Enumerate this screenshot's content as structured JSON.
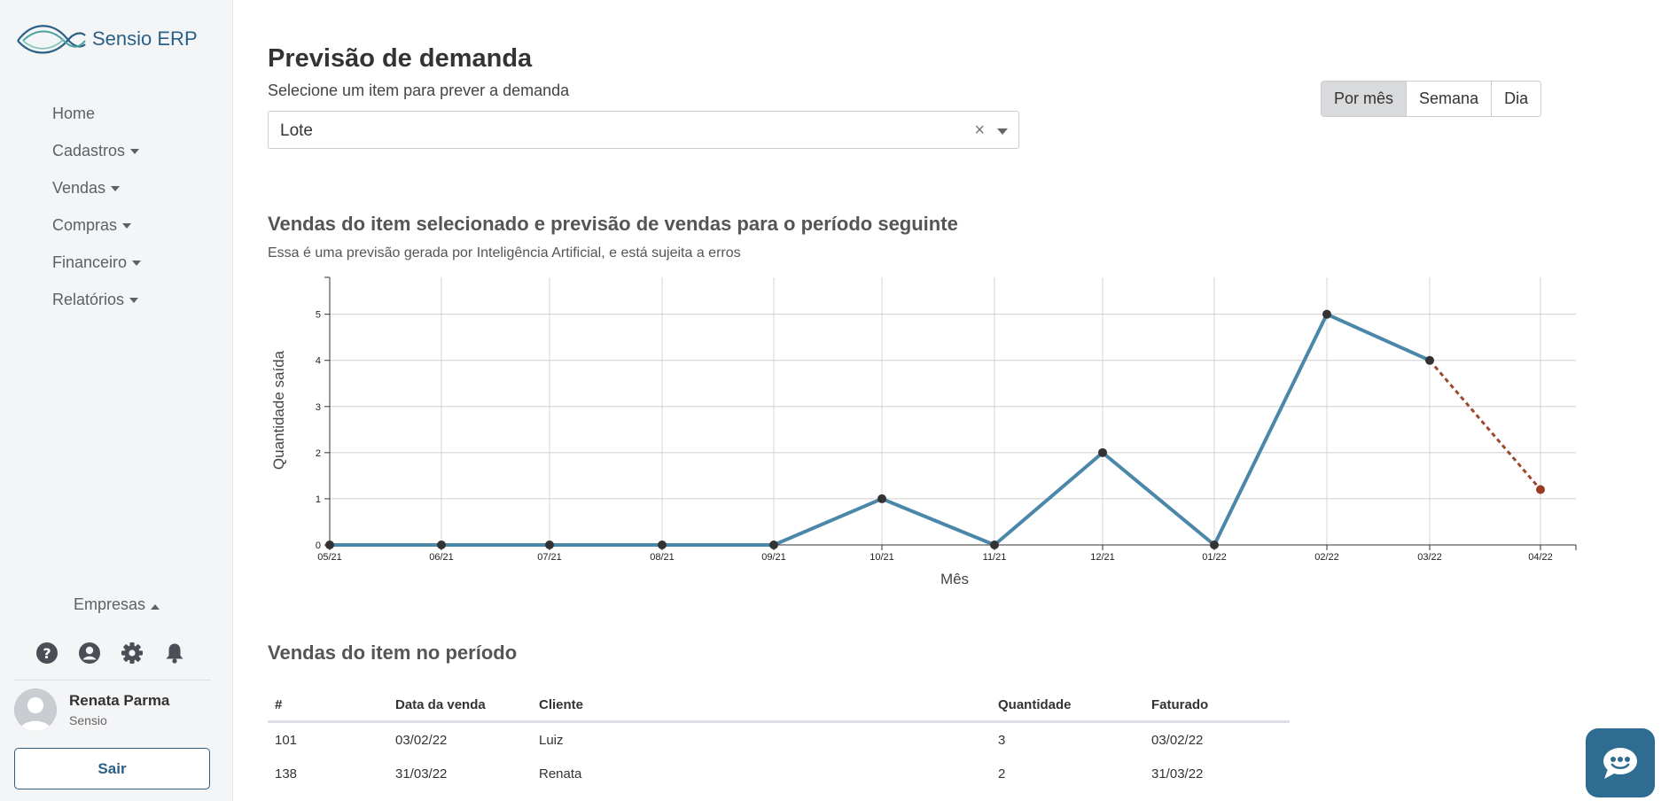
{
  "app": {
    "name": "Sensio ERP"
  },
  "sidebar": {
    "items": [
      {
        "label": "Home",
        "dropdown": false
      },
      {
        "label": "Cadastros",
        "dropdown": true
      },
      {
        "label": "Vendas",
        "dropdown": true
      },
      {
        "label": "Compras",
        "dropdown": true
      },
      {
        "label": "Financeiro",
        "dropdown": true
      },
      {
        "label": "Relatórios",
        "dropdown": true
      }
    ],
    "company_menu": "Empresas",
    "icons": [
      "help-icon",
      "user-circle-icon",
      "gear-icon",
      "bell-icon"
    ],
    "user": {
      "name": "Renata Parma",
      "org": "Sensio"
    },
    "logout_label": "Sair"
  },
  "header": {
    "title": "Previsão de demanda",
    "subtitle": "Selecione um item para prever a demanda"
  },
  "item_select": {
    "value": "Lote",
    "clear_glyph": "×"
  },
  "period_toggle": {
    "options": [
      "Por mês",
      "Semana",
      "Dia"
    ],
    "selected": "Por mês"
  },
  "chart_section": {
    "title": "Vendas do item selecionado e previsão de vendas para o período seguinte",
    "subtitle": "Essa é uma previsão gerada por Inteligência Artificial, e está sujeita a erros"
  },
  "chart_data": {
    "type": "line",
    "xlabel": "Mês",
    "ylabel": "Quantidade saída",
    "categories": [
      "05/21",
      "06/21",
      "07/21",
      "08/21",
      "09/21",
      "10/21",
      "11/21",
      "12/21",
      "01/22",
      "02/22",
      "03/22",
      "04/22"
    ],
    "yticks": [
      0,
      1,
      2,
      3,
      4,
      5
    ],
    "ylim": [
      0,
      5.8
    ],
    "grid": true,
    "series": [
      {
        "values": [
          0,
          0,
          0,
          0,
          0,
          1,
          0,
          2,
          0,
          5,
          4,
          null
        ],
        "color": "#4a87a8",
        "style": "solid"
      },
      {
        "values": [
          null,
          null,
          null,
          null,
          null,
          null,
          null,
          null,
          null,
          null,
          4,
          1.2
        ],
        "color": "#9b4a2f",
        "style": "dashed"
      }
    ]
  },
  "sales_table": {
    "title": "Vendas do item no período",
    "columns": [
      "#",
      "Data da venda",
      "Cliente",
      "Quantidade",
      "Faturado"
    ],
    "rows": [
      [
        "101",
        "03/02/22",
        "Luiz",
        "3",
        "03/02/22"
      ],
      [
        "138",
        "31/03/22",
        "Renata",
        "2",
        "31/03/22"
      ]
    ]
  },
  "chat": {
    "icon": "chat-bubble-icon"
  }
}
